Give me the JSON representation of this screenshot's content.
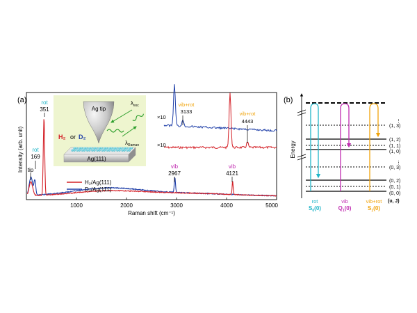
{
  "colors": {
    "h2": "#d42027",
    "d2": "#1f3fa8",
    "rot": "#1fb5c8",
    "vib": "#c02bb0",
    "vibrot": "#f0a30a",
    "inset_bg": "#eef5cf"
  },
  "panel_a": {
    "label": "(a)",
    "ylabel": "Intensity (arb. unit)",
    "xlabel": "Raman shift (cm⁻¹)",
    "xticks": [
      "1000",
      "2000",
      "3000",
      "4000",
      "5000"
    ],
    "legend": [
      "H₂/Ag(111)",
      "D₂/Ag(111)"
    ],
    "peak_labels": {
      "tip": "tip",
      "rot_d2_name": "rot",
      "rot_d2_value": "169",
      "rot_h2_name": "rot",
      "rot_h2_value": "351",
      "vib_d2_name": "vib",
      "vib_d2_value": "2967",
      "vib_h2_name": "vib",
      "vib_h2_value": "4121"
    },
    "schematic": {
      "tip_label": "Ag tip",
      "molecules_h2": "H₂",
      "molecules_or": "or",
      "molecules_d2": "D₂",
      "substrate": "Ag(111)",
      "exc_label": "λ",
      "exc_sub": "exc",
      "raman_label": "λ",
      "raman_sub": "Raman"
    },
    "zoom_inset": {
      "factor_blue": "×10",
      "factor_red": "×10",
      "blue_name": "vib+rot",
      "blue_value": "3133",
      "red_name": "vib+rot",
      "red_value": "4443"
    }
  },
  "panel_b": {
    "label": "(b)",
    "ylabel": "Energy",
    "levels": [
      "(1, 3)",
      "(1, 2)",
      "(1, 1)",
      "(1, 0)",
      "(0, 3)",
      "(0, 2)",
      "(0, 1)",
      "(0, 0)"
    ],
    "axis_label": "(υ, J)",
    "transitions": [
      {
        "name": "rot",
        "symbol": "S",
        "sub": "0",
        "arg": "(0)"
      },
      {
        "name": "vib",
        "symbol": "Q",
        "sub": "1",
        "arg": "(0)"
      },
      {
        "name": "vib+rot",
        "symbol": "S",
        "sub": "1",
        "arg": "(0)"
      }
    ]
  },
  "chart_data": [
    {
      "type": "line",
      "title": "",
      "xlabel": "Raman shift (cm⁻¹)",
      "ylabel": "Intensity (arb. unit)",
      "xlim": [
        0,
        5000
      ],
      "xticks": [
        1000,
        2000,
        3000,
        4000,
        5000
      ],
      "legend_placement": "lower-left",
      "series": [
        {
          "name": "H₂/Ag(111)",
          "peaks": [
            {
              "x": 351,
              "label": "rot"
            },
            {
              "x": 4121,
              "label": "vib"
            }
          ]
        },
        {
          "name": "D₂/Ag(111)",
          "peaks": [
            {
              "x": 169,
              "label": "rot"
            },
            {
              "x": 2967,
              "label": "vib"
            }
          ]
        }
      ],
      "annotations": [
        "tip",
        "169",
        "351",
        "2967",
        "4121"
      ]
    },
    {
      "type": "line",
      "title": "",
      "series": [
        {
          "name": "×10",
          "peaks": [
            {
              "x": 3133,
              "label": "vib+rot"
            }
          ]
        },
        {
          "name": "×10",
          "peaks": [
            {
              "x": 4443,
              "label": "vib+rot"
            }
          ]
        }
      ]
    }
  ]
}
